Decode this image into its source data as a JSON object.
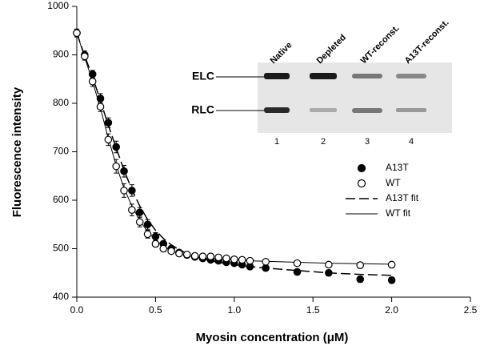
{
  "chart_data": {
    "type": "scatter",
    "x_label": "Myosin concentration (μM)",
    "y_label": "Fluorescence intensity",
    "xlim": [
      0,
      2.5
    ],
    "ylim": [
      400,
      1000
    ],
    "xticks": [
      {
        "value": 0,
        "label": "0.0"
      },
      0.5,
      {
        "value": 1,
        "label": "1.0"
      },
      1.5,
      {
        "value": 2,
        "label": "2.0"
      },
      2.5
    ],
    "yticks": [
      400,
      500,
      600,
      700,
      800,
      900,
      1000
    ],
    "grid": false,
    "legend": "right",
    "x": [
      0,
      0.05,
      0.1,
      0.15,
      0.2,
      0.25,
      0.3,
      0.35,
      0.4,
      0.45,
      0.5,
      0.55,
      0.6,
      0.65,
      0.7,
      0.75,
      0.8,
      0.85,
      0.9,
      0.95,
      1.0,
      1.05,
      1.1,
      1.2,
      1.4,
      1.6,
      1.8,
      2.0
    ],
    "series": [
      {
        "name": "A13T",
        "color": "#000000",
        "marker": "filled",
        "values": [
          945,
          900,
          860,
          810,
          760,
          710,
          660,
          620,
          575,
          550,
          525,
          510,
          500,
          492,
          487,
          483,
          480,
          477,
          475,
          472,
          470,
          467,
          463,
          460,
          452,
          450,
          437,
          435
        ],
        "errors": [
          8,
          8,
          8,
          10,
          10,
          12,
          12,
          12,
          10,
          10,
          8,
          6,
          6,
          5,
          5,
          5,
          5,
          5,
          5,
          5,
          5,
          5,
          5,
          5,
          6,
          6,
          6,
          6
        ]
      },
      {
        "name": "WT",
        "color": "#000000",
        "marker": "open",
        "values": [
          945,
          897,
          845,
          793,
          725,
          670,
          620,
          580,
          555,
          530,
          510,
          500,
          495,
          490,
          488,
          485,
          484,
          484,
          482,
          480,
          478,
          477,
          475,
          473,
          470,
          467,
          466,
          467
        ],
        "errors": [
          8,
          8,
          10,
          10,
          12,
          14,
          14,
          12,
          10,
          8,
          6,
          6,
          5,
          5,
          5,
          5,
          5,
          5,
          5,
          5,
          5,
          5,
          5,
          5,
          5,
          5,
          6,
          6
        ]
      },
      {
        "name": "A13T fit",
        "color": "#000000",
        "line_style": "dashed",
        "values": [
          945,
          898,
          855,
          805,
          755,
          708,
          662,
          622,
          588,
          560,
          538,
          521,
          508,
          498,
          490,
          484,
          479,
          475,
          472,
          469,
          467,
          465,
          463,
          460,
          455,
          450,
          447,
          445
        ]
      },
      {
        "name": "WT fit",
        "color": "#000000",
        "line_style": "solid",
        "values": [
          945,
          895,
          845,
          790,
          728,
          672,
          625,
          588,
          558,
          535,
          518,
          505,
          496,
          490,
          486,
          483,
          481,
          480,
          479,
          478,
          477,
          476,
          475,
          474,
          472,
          470,
          469,
          468
        ]
      }
    ],
    "inset": {
      "lane_labels": [
        "Native",
        "Depleted",
        "WT-reconst.",
        "A13T-reconst."
      ],
      "band_labels": [
        "ELC",
        "RLC"
      ],
      "lane_numbers": [
        "1",
        "2",
        "3",
        "4"
      ]
    }
  }
}
